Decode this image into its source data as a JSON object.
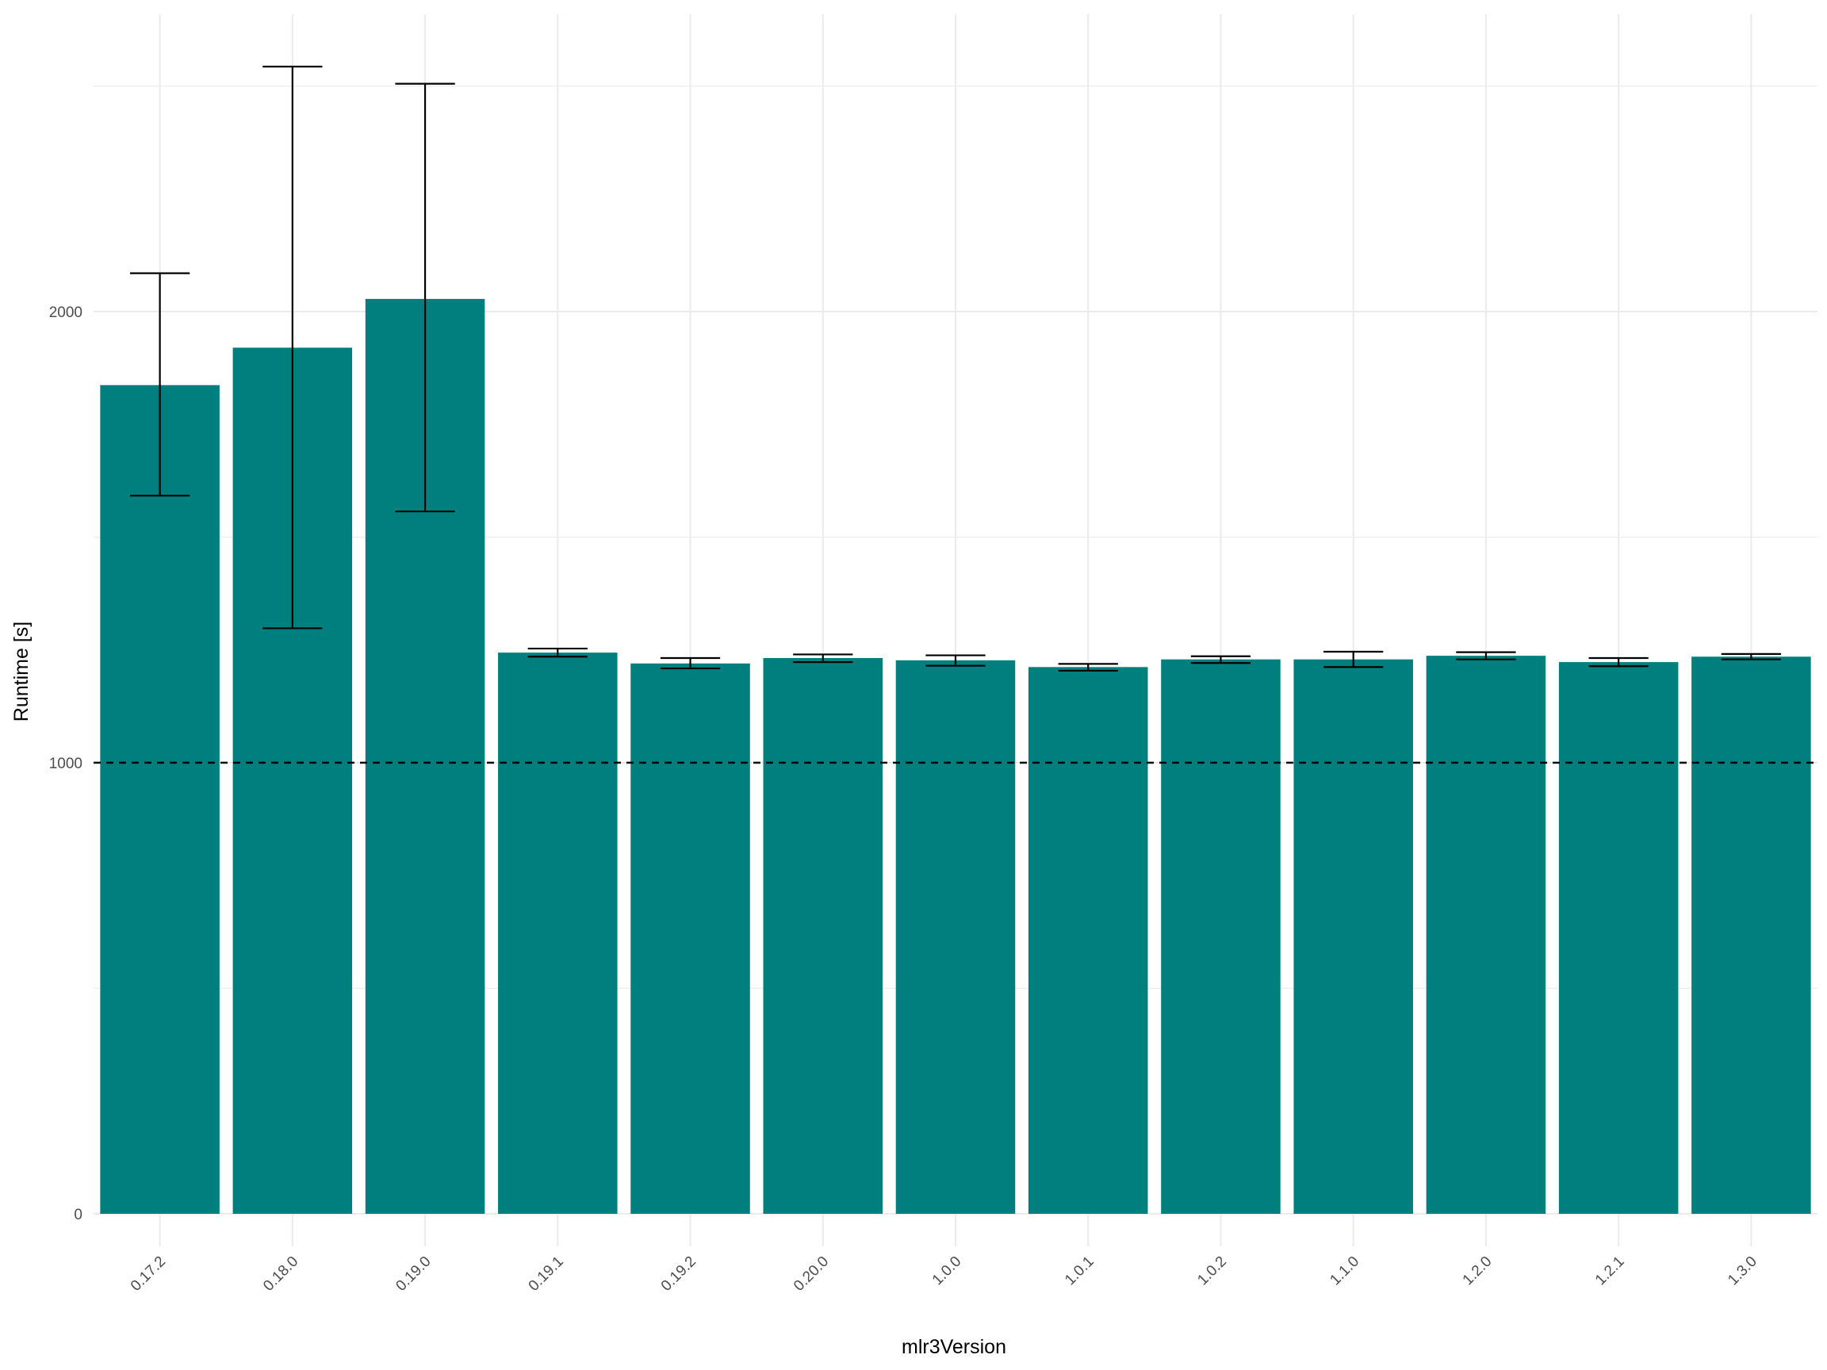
{
  "chart_data": {
    "type": "bar",
    "xlabel": "mlr3Version",
    "ylabel": "Runtime [s]",
    "categories": [
      "0.17.2",
      "0.18.0",
      "0.19.0",
      "0.19.1",
      "0.19.2",
      "0.20.0",
      "1.0.0",
      "1.0.1",
      "1.0.2",
      "1.1.0",
      "1.2.0",
      "1.2.1",
      "1.3.0"
    ],
    "values": [
      1837,
      1920,
      2028,
      1244,
      1220,
      1232,
      1227,
      1212,
      1229,
      1229,
      1237,
      1223,
      1235
    ],
    "error_low": [
      1592,
      1298,
      1557,
      1235,
      1209,
      1223,
      1215,
      1204,
      1221,
      1212,
      1229,
      1214,
      1229
    ],
    "error_high": [
      2085,
      2543,
      2505,
      1253,
      1232,
      1240,
      1238,
      1219,
      1236,
      1246,
      1245,
      1232,
      1241
    ],
    "yticks": [
      0,
      1000,
      2000
    ],
    "ylim": [
      -75,
      2730
    ],
    "reference_line": 1000,
    "grid": true,
    "colors": {
      "bar": "#007f7f",
      "error_bar": "#000000",
      "grid": "#ebebeb",
      "reference_line": "#000000"
    }
  }
}
